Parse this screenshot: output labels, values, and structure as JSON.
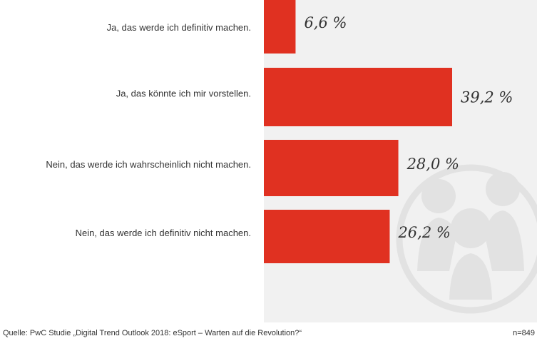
{
  "chart_data": {
    "type": "bar",
    "orientation": "horizontal",
    "categories": [
      "Ja, das werde ich definitiv machen.",
      "Ja, das könnte ich mir vorstellen.",
      "Nein, das werde ich wahrscheinlich nicht machen.",
      "Nein, das werde ich definitiv nicht machen."
    ],
    "values": [
      6.6,
      39.2,
      28.0,
      26.2
    ],
    "value_labels": [
      "6,6 %",
      "39,2 %",
      "28,0 %",
      "26,2 %"
    ],
    "color": "#e03121",
    "source": "Quelle: PwC Studie „Digital Trend Outlook 2018: eSport – Warten auf die Revolution?“",
    "sample": "n=849"
  }
}
